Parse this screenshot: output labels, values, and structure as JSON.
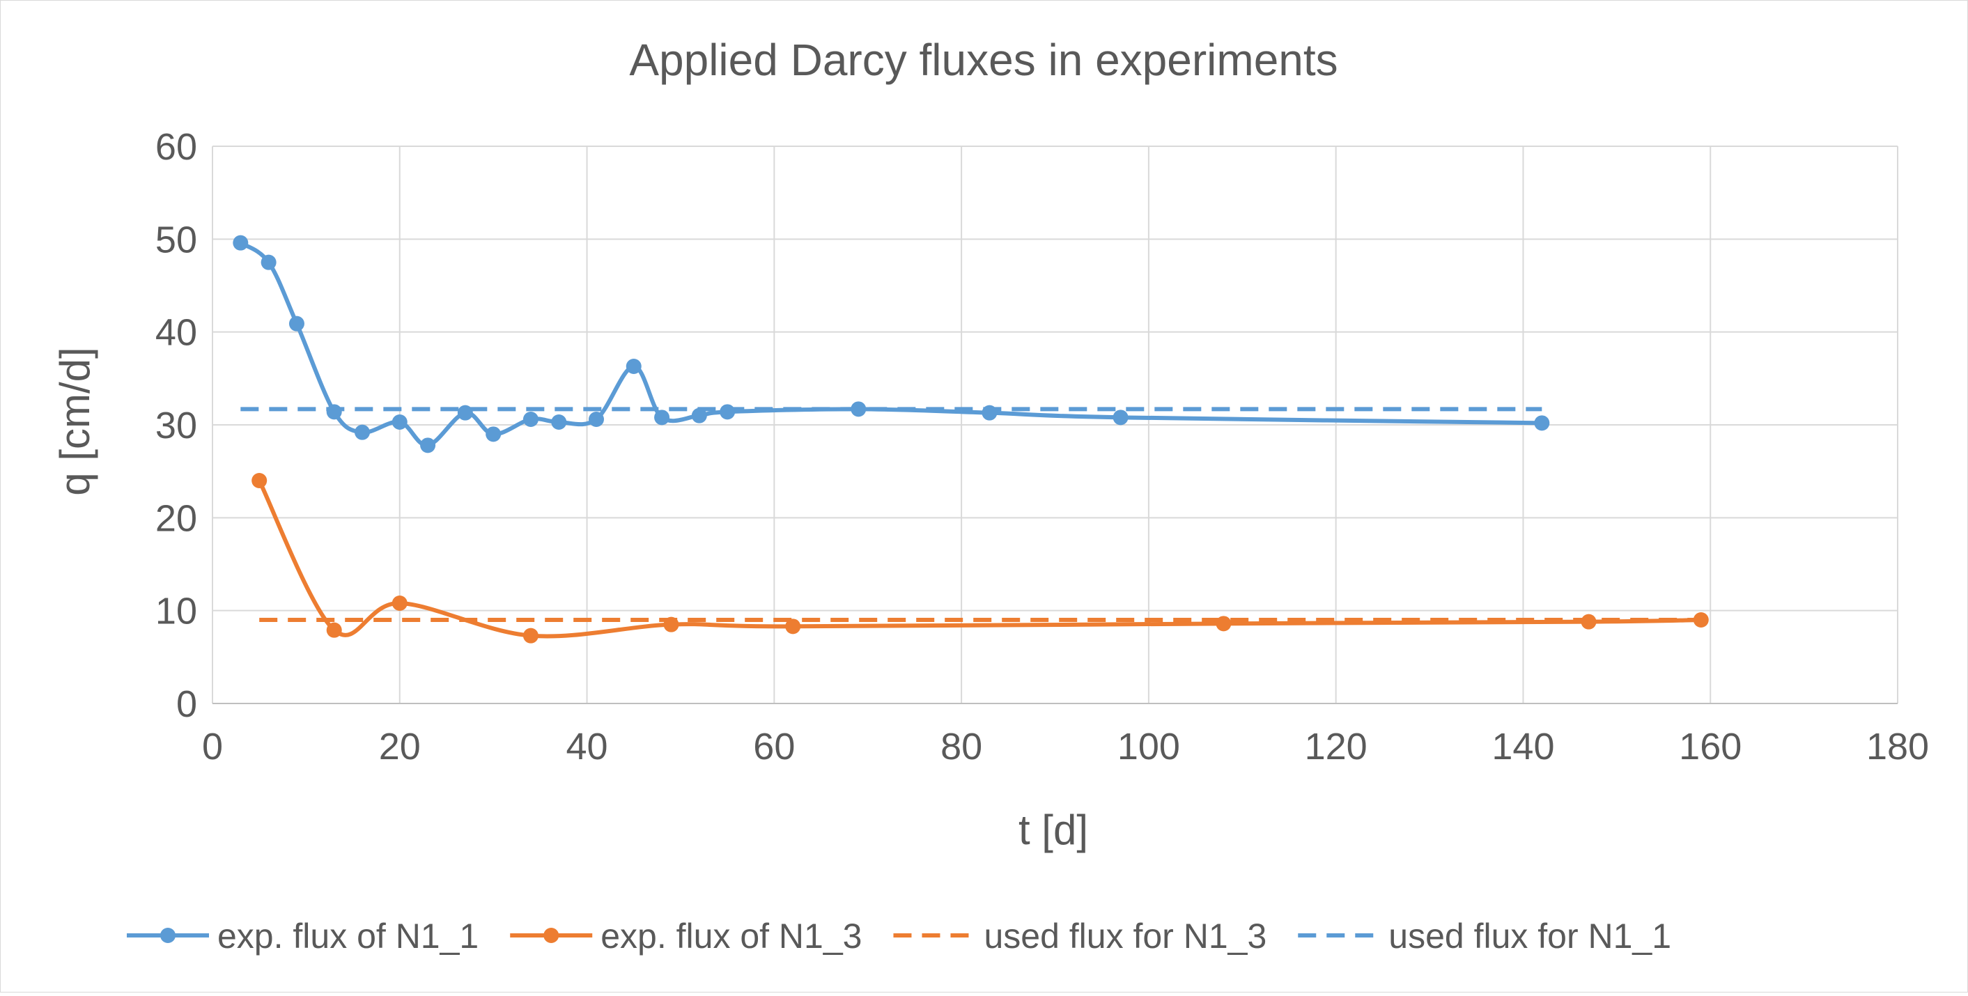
{
  "chart_data": {
    "type": "line",
    "title": "Applied Darcy fluxes in experiments",
    "xlabel": "t [d]",
    "ylabel": "q [cm/d]",
    "xlim": [
      0,
      180
    ],
    "ylim": [
      0,
      60
    ],
    "xticks": [
      0,
      20,
      40,
      60,
      80,
      100,
      120,
      140,
      160,
      180
    ],
    "yticks": [
      0,
      10,
      20,
      30,
      40,
      50,
      60
    ],
    "grid": true,
    "legend_position": "bottom",
    "series": [
      {
        "name": "exp. flux of N1_1",
        "color": "#5B9BD5",
        "style": "smooth-line-markers",
        "x": [
          3,
          6,
          9,
          13,
          16,
          20,
          23,
          27,
          30,
          34,
          37,
          41,
          45,
          48,
          52,
          55,
          69,
          83,
          97,
          142
        ],
        "y": [
          49.6,
          47.5,
          40.9,
          31.4,
          29.2,
          30.3,
          27.8,
          31.3,
          29.0,
          30.6,
          30.3,
          30.6,
          36.3,
          30.8,
          31.0,
          31.4,
          31.7,
          31.3,
          30.8,
          30.2
        ]
      },
      {
        "name": "exp. flux of N1_3",
        "color": "#ED7D31",
        "style": "smooth-line-markers",
        "x": [
          5,
          13,
          20,
          34,
          49,
          62,
          108,
          147,
          159
        ],
        "y": [
          24.0,
          7.9,
          10.8,
          7.3,
          8.5,
          8.3,
          8.6,
          8.8,
          9.0
        ]
      },
      {
        "name": "used flux for N1_3",
        "color": "#ED7D31",
        "style": "dashed",
        "x": [
          5,
          159
        ],
        "y": [
          9.0,
          9.0
        ]
      },
      {
        "name": "used flux for N1_1",
        "color": "#5B9BD5",
        "style": "dashed",
        "x": [
          3,
          142
        ],
        "y": [
          31.7,
          31.7
        ]
      }
    ]
  }
}
